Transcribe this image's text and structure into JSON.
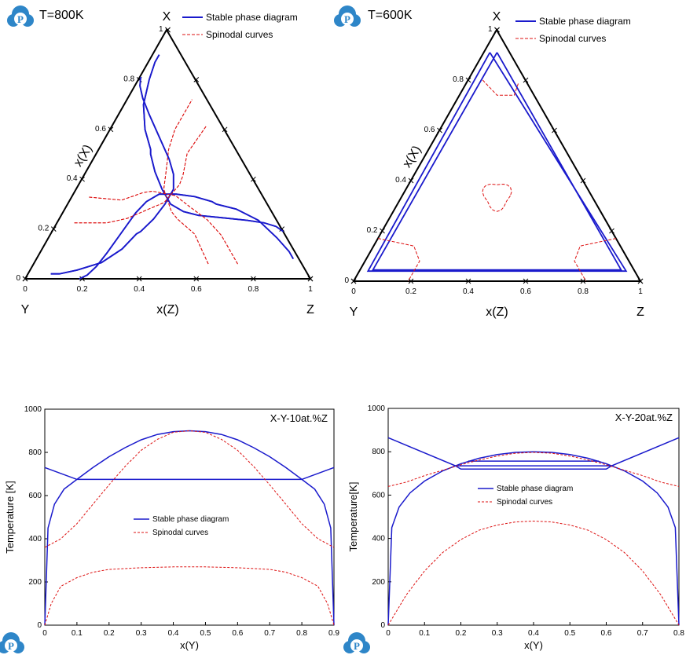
{
  "chart_data": [
    {
      "type": "ternary",
      "title": "T=800K",
      "vertices": {
        "top": "X",
        "left": "Y",
        "right": "Z"
      },
      "axis_label_left": "x(X)",
      "axis_label_bottom": "x(Z)",
      "ticks_left": [
        "0",
        "0.2",
        "0.4",
        "0.6",
        "0.8",
        "1"
      ],
      "ticks_bottom": [
        "0",
        "0.2",
        "0.4",
        "0.6",
        "0.8",
        "1"
      ],
      "legend": [
        "Stable phase diagram",
        "Spinodal curves"
      ],
      "colors": {
        "stable": "#1a1acc",
        "spinodal": "#dd1111"
      },
      "series": [
        {
          "name": "Stable phase diagram",
          "kind": "binodal",
          "pairs": [
            [
              0.19,
              0.81
            ],
            [
              0.21,
              0.775
            ],
            [
              0.225,
              0.725
            ],
            [
              0.235,
              0.66
            ],
            [
              0.245,
              0.57
            ],
            [
              0.255,
              0.48
            ],
            [
              0.27,
              0.42
            ],
            [
              0.3,
              0.36
            ],
            [
              0.36,
              0.3
            ],
            [
              0.43,
              0.24
            ],
            [
              0.5,
              0.19
            ],
            [
              0.52,
              0.18
            ],
            [
              0.6,
              0.12
            ],
            [
              0.7,
              0.065
            ],
            [
              0.8,
              0.035
            ],
            [
              0.87,
              0.02
            ],
            [
              0.9,
              0.02
            ]
          ]
        },
        {
          "name": "Spinodal curves",
          "kind": "spinodal",
          "pairs": [
            [
              0.06,
              0.68
            ],
            [
              0.12,
              0.62
            ],
            [
              0.18,
              0.56
            ],
            [
              0.21,
              0.51
            ],
            [
              0.24,
              0.46
            ],
            [
              0.27,
              0.42
            ],
            [
              0.36,
              0.34
            ],
            [
              0.43,
              0.31
            ],
            [
              0.52,
              0.27
            ],
            [
              0.6,
              0.25
            ],
            [
              0.72,
              0.25
            ]
          ]
        }
      ]
    },
    {
      "type": "ternary",
      "title": "T=600K",
      "vertices": {
        "top": "X",
        "left": "Y",
        "right": "Z"
      },
      "axis_label_left": "x(X)",
      "axis_label_bottom": "x(Z)",
      "ticks_left": [
        "0",
        "0.2",
        "0.4",
        "0.6",
        "0.8",
        "1"
      ],
      "ticks_bottom": [
        "0",
        "0.2",
        "0.4",
        "0.6",
        "0.8",
        "1"
      ],
      "legend": [
        "Stable phase diagram",
        "Spinodal curves"
      ],
      "colors": {
        "stable": "#1a1acc",
        "spinodal": "#dd1111"
      },
      "series": [
        {
          "name": "Stable phase diagram",
          "kind": "three-phase triangle",
          "points": [
            [
              0.91,
              0.045,
              0.045
            ],
            [
              0.045,
              0.91,
              0.045
            ],
            [
              0.045,
              0.045,
              0.91
            ]
          ]
        },
        {
          "name": "Spinodal curves",
          "kind": "corner lobes",
          "points": [
            [
              0.81,
              0.1,
              0.09
            ],
            [
              0.18,
              0.81,
              0.01
            ],
            [
              0.18,
              0.01,
              0.81
            ]
          ]
        },
        {
          "name": "Spinodal curves",
          "kind": "central loop",
          "center": [
            0.35,
            0.325,
            0.325
          ]
        }
      ]
    },
    {
      "type": "line",
      "title": "X-Y-10at.%Z",
      "xlabel": "x(Y)",
      "ylabel": "Temperature [K]",
      "xlim": [
        0,
        0.9
      ],
      "ylim": [
        0,
        1000
      ],
      "xticks": [
        "0",
        "0.1",
        "0.2",
        "0.3",
        "0.4",
        "0.5",
        "0.6",
        "0.7",
        "0.8",
        "0.9"
      ],
      "yticks": [
        "0",
        "200",
        "400",
        "600",
        "800",
        "1000"
      ],
      "legend": [
        "Stable phase diagram",
        "Spinodal curves"
      ],
      "colors": {
        "stable": "#1a1acc",
        "spinodal": "#dd1111"
      },
      "series": [
        {
          "name": "Stable phase diagram",
          "x": [
            0,
            0.01,
            0.03,
            0.06,
            0.1,
            0.15,
            0.2,
            0.25,
            0.3,
            0.35,
            0.4,
            0.45,
            0.5,
            0.55,
            0.6,
            0.65,
            0.7,
            0.75,
            0.8,
            0.84,
            0.87,
            0.89,
            0.9
          ],
          "y": [
            0,
            450,
            560,
            630,
            675,
            730,
            780,
            822,
            858,
            883,
            896,
            900,
            896,
            883,
            858,
            822,
            780,
            730,
            675,
            630,
            560,
            450,
            0
          ]
        },
        {
          "name": "Stable phase diagram",
          "x": [
            0,
            0.1,
            0.8,
            0.9
          ],
          "y": [
            730,
            675,
            675,
            730
          ]
        },
        {
          "name": "Spinodal curves",
          "x": [
            0,
            0.05,
            0.1,
            0.15,
            0.2,
            0.25,
            0.3,
            0.35,
            0.4,
            0.45,
            0.5,
            0.55,
            0.6,
            0.65,
            0.7,
            0.75,
            0.8,
            0.85,
            0.9
          ],
          "y": [
            360,
            400,
            470,
            560,
            650,
            735,
            810,
            860,
            893,
            900,
            893,
            860,
            810,
            735,
            650,
            560,
            470,
            400,
            360
          ]
        },
        {
          "name": "Spinodal curves",
          "x": [
            0,
            0.02,
            0.05,
            0.1,
            0.15,
            0.2,
            0.3,
            0.4,
            0.45,
            0.5,
            0.6,
            0.7,
            0.75,
            0.8,
            0.85,
            0.88,
            0.9
          ],
          "y": [
            0,
            100,
            180,
            220,
            245,
            258,
            266,
            270,
            270,
            270,
            266,
            258,
            245,
            220,
            180,
            100,
            0
          ]
        }
      ]
    },
    {
      "type": "line",
      "title": "X-Y-20at.%Z",
      "xlabel": "x(Y)",
      "ylabel": "Temperature[K]",
      "xlim": [
        0,
        0.8
      ],
      "ylim": [
        0,
        1000
      ],
      "xticks": [
        "0",
        "0.1",
        "0.2",
        "0.3",
        "0.4",
        "0.5",
        "0.6",
        "0.7",
        "0.8"
      ],
      "yticks": [
        "0",
        "200",
        "400",
        "600",
        "800",
        "1000"
      ],
      "legend": [
        "Stable phase diagram",
        "Spinodal curves"
      ],
      "colors": {
        "stable": "#1a1acc",
        "spinodal": "#dd1111"
      },
      "series": [
        {
          "name": "Stable phase diagram",
          "x": [
            0,
            0.01,
            0.03,
            0.06,
            0.1,
            0.15,
            0.2,
            0.25,
            0.3,
            0.35,
            0.4,
            0.45,
            0.5,
            0.55,
            0.6,
            0.65,
            0.7,
            0.74,
            0.77,
            0.79,
            0.8
          ],
          "y": [
            0,
            450,
            545,
            610,
            665,
            712,
            745,
            770,
            787,
            797,
            800,
            797,
            787,
            770,
            745,
            712,
            665,
            610,
            545,
            450,
            0
          ]
        },
        {
          "name": "Stable phase diagram",
          "x": [
            0,
            0.185,
            0.615,
            0.8
          ],
          "y": [
            865,
            735,
            735,
            865
          ]
        },
        {
          "name": "Stable phase diagram",
          "x": [
            0.185,
            0.2,
            0.6,
            0.615
          ],
          "y": [
            735,
            720,
            720,
            735
          ]
        },
        {
          "name": "Stable phase diagram",
          "x": [
            0.22,
            0.58
          ],
          "y": [
            757,
            757
          ]
        },
        {
          "name": "Spinodal curves",
          "x": [
            0,
            0.05,
            0.1,
            0.15,
            0.2,
            0.25,
            0.3,
            0.35,
            0.4,
            0.45,
            0.5,
            0.55,
            0.6,
            0.65,
            0.7,
            0.75,
            0.8
          ],
          "y": [
            640,
            660,
            690,
            715,
            740,
            762,
            780,
            793,
            797,
            793,
            780,
            762,
            740,
            715,
            690,
            660,
            640
          ]
        },
        {
          "name": "Spinodal curves",
          "x": [
            0,
            0.05,
            0.1,
            0.15,
            0.2,
            0.25,
            0.3,
            0.35,
            0.4,
            0.45,
            0.5,
            0.55,
            0.6,
            0.65,
            0.7,
            0.75,
            0.8
          ],
          "y": [
            0,
            140,
            250,
            335,
            395,
            438,
            462,
            476,
            480,
            476,
            462,
            438,
            395,
            335,
            250,
            140,
            0
          ]
        }
      ]
    }
  ]
}
